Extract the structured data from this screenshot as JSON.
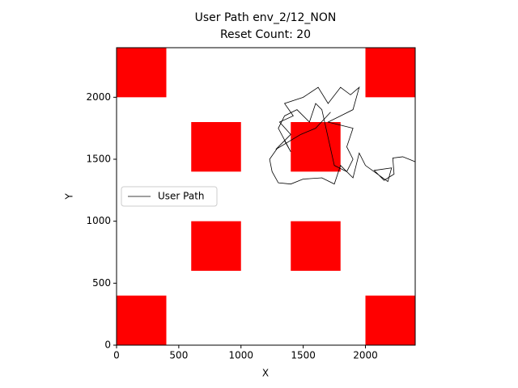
{
  "chart_data": {
    "type": "line",
    "title": "User Path env_2/12_NON",
    "subtitle": "Reset Count: 20",
    "x_label": "X",
    "y_label": "Y",
    "xlim": [
      0,
      2400
    ],
    "ylim": [
      0,
      2400
    ],
    "xticks": [
      0,
      500,
      1000,
      1500,
      2000
    ],
    "yticks": [
      0,
      500,
      1000,
      1500,
      2000
    ],
    "grid": false,
    "legend": "center left",
    "obstacle_color": "#ff0000",
    "obstacles": [
      {
        "x": [
          0,
          400
        ],
        "y": [
          2000,
          2400
        ]
      },
      {
        "x": [
          2000,
          2400
        ],
        "y": [
          2000,
          2400
        ]
      },
      {
        "x": [
          600,
          1000
        ],
        "y": [
          1400,
          1800
        ]
      },
      {
        "x": [
          1400,
          1800
        ],
        "y": [
          1400,
          1800
        ]
      },
      {
        "x": [
          600,
          1000
        ],
        "y": [
          600,
          1000
        ]
      },
      {
        "x": [
          1400,
          1800
        ],
        "y": [
          600,
          1000
        ]
      },
      {
        "x": [
          0,
          400
        ],
        "y": [
          0,
          400
        ]
      },
      {
        "x": [
          2000,
          2400
        ],
        "y": [
          0,
          400
        ]
      }
    ],
    "series": [
      {
        "name": "User Path",
        "color": "#000000",
        "x": [
          2400,
          2300,
          2220,
          2230,
          2150,
          2070,
          2210,
          2180,
          2000,
          1950,
          1900,
          1800,
          1750,
          1650,
          1500,
          1400,
          1300,
          1250,
          1230,
          1300,
          1400,
          1310,
          1420,
          1350,
          1500,
          1620,
          1700,
          1800,
          1880,
          1950,
          1900,
          1800,
          1700,
          1900,
          1850,
          1900,
          1850,
          1750,
          1650,
          1600,
          1550,
          1450,
          1350,
          1300,
          1400,
          1350,
          1280,
          1480,
          1600,
          1720
        ],
        "values": [
          1480,
          1520,
          1510,
          1380,
          1330,
          1410,
          1430,
          1320,
          1450,
          1550,
          1350,
          1450,
          1300,
          1350,
          1340,
          1300,
          1310,
          1400,
          1500,
          1600,
          1700,
          1800,
          1850,
          1950,
          2000,
          2080,
          1950,
          2080,
          2020,
          2080,
          1900,
          1850,
          1800,
          1750,
          1600,
          1500,
          1400,
          1450,
          1900,
          1950,
          1800,
          1900,
          1850,
          1750,
          1560,
          1650,
          1580,
          1700,
          1750,
          1880
        ]
      }
    ]
  }
}
